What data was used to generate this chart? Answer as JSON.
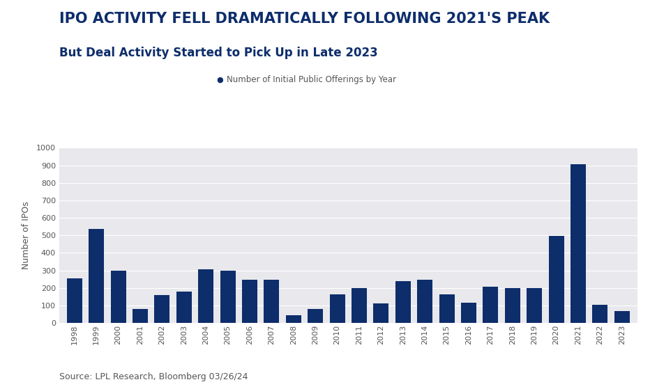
{
  "title_main": "IPO ACTIVITY FELL DRAMATICALLY FOLLOWING 2021'S PEAK",
  "title_sub": "But Deal Activity Started to Pick Up in Late 2023",
  "legend_label": "Number of Initial Public Offerings by Year",
  "ylabel": "Number of IPOs",
  "source": "Source: LPL Research, Bloomberg 03/26/24",
  "years": [
    1998,
    1999,
    2000,
    2001,
    2002,
    2003,
    2004,
    2005,
    2006,
    2007,
    2008,
    2009,
    2010,
    2011,
    2012,
    2013,
    2014,
    2015,
    2016,
    2017,
    2018,
    2019,
    2020,
    2021,
    2022,
    2023
  ],
  "values": [
    255,
    535,
    300,
    78,
    158,
    178,
    305,
    300,
    248,
    248,
    43,
    80,
    163,
    197,
    110,
    240,
    248,
    163,
    115,
    205,
    198,
    200,
    496,
    905,
    103,
    68
  ],
  "bar_color": "#0d2d6b",
  "bg_color": "#e8e8ed",
  "fig_bg_color": "#ffffff",
  "ylim": [
    0,
    1000
  ],
  "yticks": [
    0,
    100,
    200,
    300,
    400,
    500,
    600,
    700,
    800,
    900,
    1000
  ],
  "title_main_color": "#0d2d6b",
  "title_sub_color": "#0d2d6b",
  "legend_dot_color": "#0d2d6b",
  "legend_text_color": "#555555",
  "ylabel_color": "#555555",
  "tick_color": "#555555",
  "source_color": "#555555",
  "grid_color": "#ffffff",
  "title_main_fontsize": 15,
  "title_sub_fontsize": 12,
  "legend_fontsize": 8.5,
  "ylabel_fontsize": 9,
  "tick_fontsize": 8,
  "source_fontsize": 9
}
